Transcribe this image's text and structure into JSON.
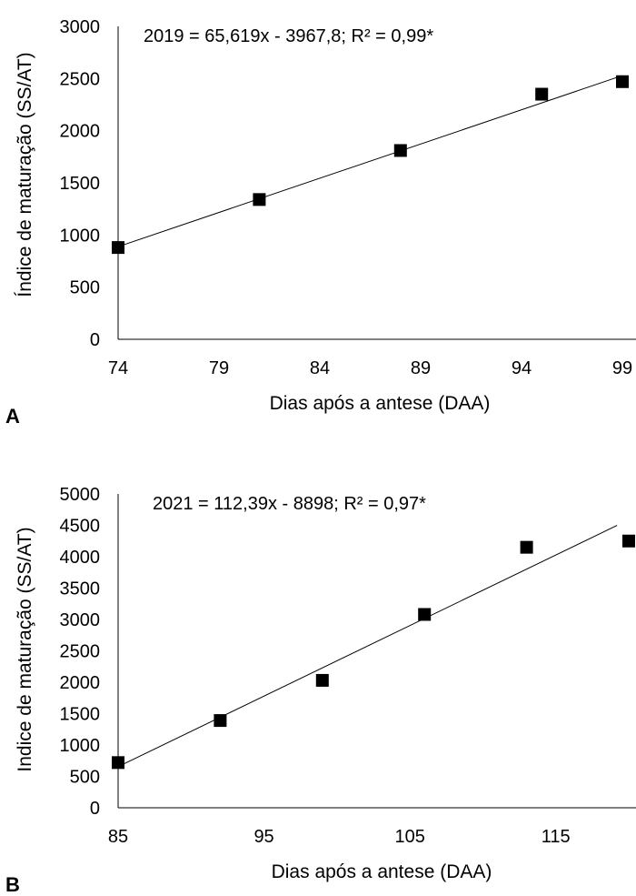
{
  "chart_data": [
    {
      "panel_label": "A",
      "type": "scatter",
      "equation": "2019 = 65,619x - 3967,8; R² = 0,99*",
      "xlabel": "Dias após a antese (DAA)",
      "ylabel": "Índice de maturação (SS/AT)",
      "xlim": [
        74,
        99
      ],
      "ylim": [
        0,
        3000
      ],
      "xticks": [
        74,
        79,
        84,
        89,
        94,
        99
      ],
      "yticks": [
        0,
        500,
        1000,
        1500,
        2000,
        2500,
        3000
      ],
      "x": [
        74,
        81,
        88,
        95,
        99
      ],
      "y": [
        880,
        1340,
        1810,
        2350,
        2470
      ],
      "trendline": {
        "slope": 65.619,
        "intercept": -3967.8,
        "x_range": [
          74,
          99
        ]
      },
      "grid": false,
      "colors": {
        "marker": "#000000",
        "line": "#000000"
      }
    },
    {
      "panel_label": "B",
      "type": "scatter",
      "equation": "2021 = 112,39x - 8898; R² = 0,97*",
      "xlabel": "Dias após a antese (DAA)",
      "ylabel": "Indice de maturação (SS/AT)",
      "xlim": [
        85,
        120
      ],
      "ylim": [
        0,
        5000
      ],
      "xticks": [
        85,
        95,
        105,
        115
      ],
      "yticks": [
        0,
        500,
        1000,
        1500,
        2000,
        2500,
        3000,
        3500,
        4000,
        4500,
        5000
      ],
      "x": [
        85,
        92,
        99,
        106,
        113,
        120
      ],
      "y": [
        720,
        1390,
        2030,
        3080,
        4150,
        4250
      ],
      "trendline": {
        "slope": 112.39,
        "intercept": -8898,
        "x_range": [
          85,
          119.2
        ]
      },
      "grid": false,
      "colors": {
        "marker": "#000000",
        "line": "#000000"
      }
    }
  ]
}
